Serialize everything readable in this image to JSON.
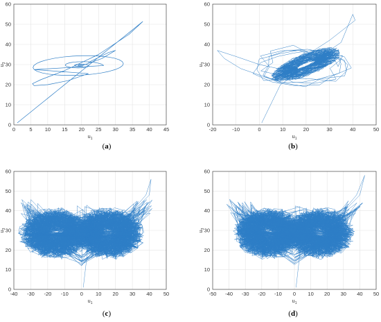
{
  "figure": {
    "accent_color": "#2e7ec6",
    "panels": [
      {
        "id": "a",
        "label_open": "(",
        "label_letter": "a",
        "label_close": ")"
      },
      {
        "id": "b",
        "label_open": "(",
        "label_letter": "b",
        "label_close": ")"
      },
      {
        "id": "c",
        "label_open": "(",
        "label_letter": "c",
        "label_close": ")"
      },
      {
        "id": "d",
        "label_open": "(",
        "label_letter": "d",
        "label_close": ")"
      }
    ]
  },
  "chart_data": [
    {
      "panel": "a",
      "type": "line",
      "title": "",
      "xlabel": "u1",
      "ylabel": "u3",
      "xlim": [
        0,
        45
      ],
      "ylim": [
        0,
        60
      ],
      "xticks": [
        0,
        5,
        10,
        15,
        20,
        25,
        30,
        35,
        40,
        45
      ],
      "yticks": [
        0,
        10,
        20,
        30,
        40,
        50,
        60
      ],
      "grid": true,
      "color": "#2e7ec6",
      "description_points": {
        "start": [
          1,
          1
        ],
        "spike": [
          40,
          54
        ],
        "loops": [
          [
            5,
            21
          ],
          [
            10,
            30
          ],
          [
            30,
            37
          ],
          [
            22,
            28
          ],
          [
            19,
            29.5
          ]
        ]
      }
    },
    {
      "panel": "b",
      "type": "line",
      "title": "",
      "xlabel": "u1",
      "ylabel": "u3",
      "xlim": [
        -20,
        50
      ],
      "ylim": [
        0,
        60
      ],
      "xticks": [
        -20,
        -10,
        0,
        10,
        20,
        30,
        40,
        50
      ],
      "yticks": [
        0,
        10,
        20,
        30,
        40,
        50,
        60
      ],
      "grid": true,
      "color": "#2e7ec6",
      "description_points": {
        "start": [
          1,
          1
        ],
        "spike": [
          40,
          55
        ],
        "dense_center": [
          20,
          30
        ],
        "left_extent": [
          -18,
          37
        ]
      }
    },
    {
      "panel": "c",
      "type": "line",
      "title": "",
      "xlabel": "u1",
      "ylabel": "u3",
      "xlim": [
        -40,
        50
      ],
      "ylim": [
        0,
        60
      ],
      "xticks": [
        -40,
        -30,
        -20,
        -10,
        0,
        10,
        20,
        30,
        40,
        50
      ],
      "yticks": [
        0,
        10,
        20,
        30,
        40,
        50,
        60
      ],
      "grid": true,
      "color": "#2e7ec6",
      "description_points": {
        "start": [
          1,
          1
        ],
        "left_lobe_center": [
          -15,
          28
        ],
        "right_lobe_center": [
          15,
          28
        ],
        "left_extent": [
          -37,
          44
        ],
        "right_extent": [
          43,
          47
        ],
        "spike": [
          41,
          56
        ]
      }
    },
    {
      "panel": "d",
      "type": "line",
      "title": "",
      "xlabel": "u1",
      "ylabel": "u3",
      "xlim": [
        -50,
        50
      ],
      "ylim": [
        0,
        60
      ],
      "xticks": [
        -50,
        -40,
        -30,
        -20,
        -10,
        0,
        10,
        20,
        30,
        40,
        50
      ],
      "yticks": [
        0,
        10,
        20,
        30,
        40,
        50,
        60
      ],
      "grid": true,
      "color": "#2e7ec6",
      "description_points": {
        "start": [
          1,
          1
        ],
        "left_lobe_center": [
          -15,
          28
        ],
        "right_lobe_center": [
          15,
          28
        ],
        "left_extent": [
          -42,
          48
        ],
        "right_extent": [
          43,
          47
        ],
        "spike": [
          43,
          58
        ]
      }
    }
  ]
}
